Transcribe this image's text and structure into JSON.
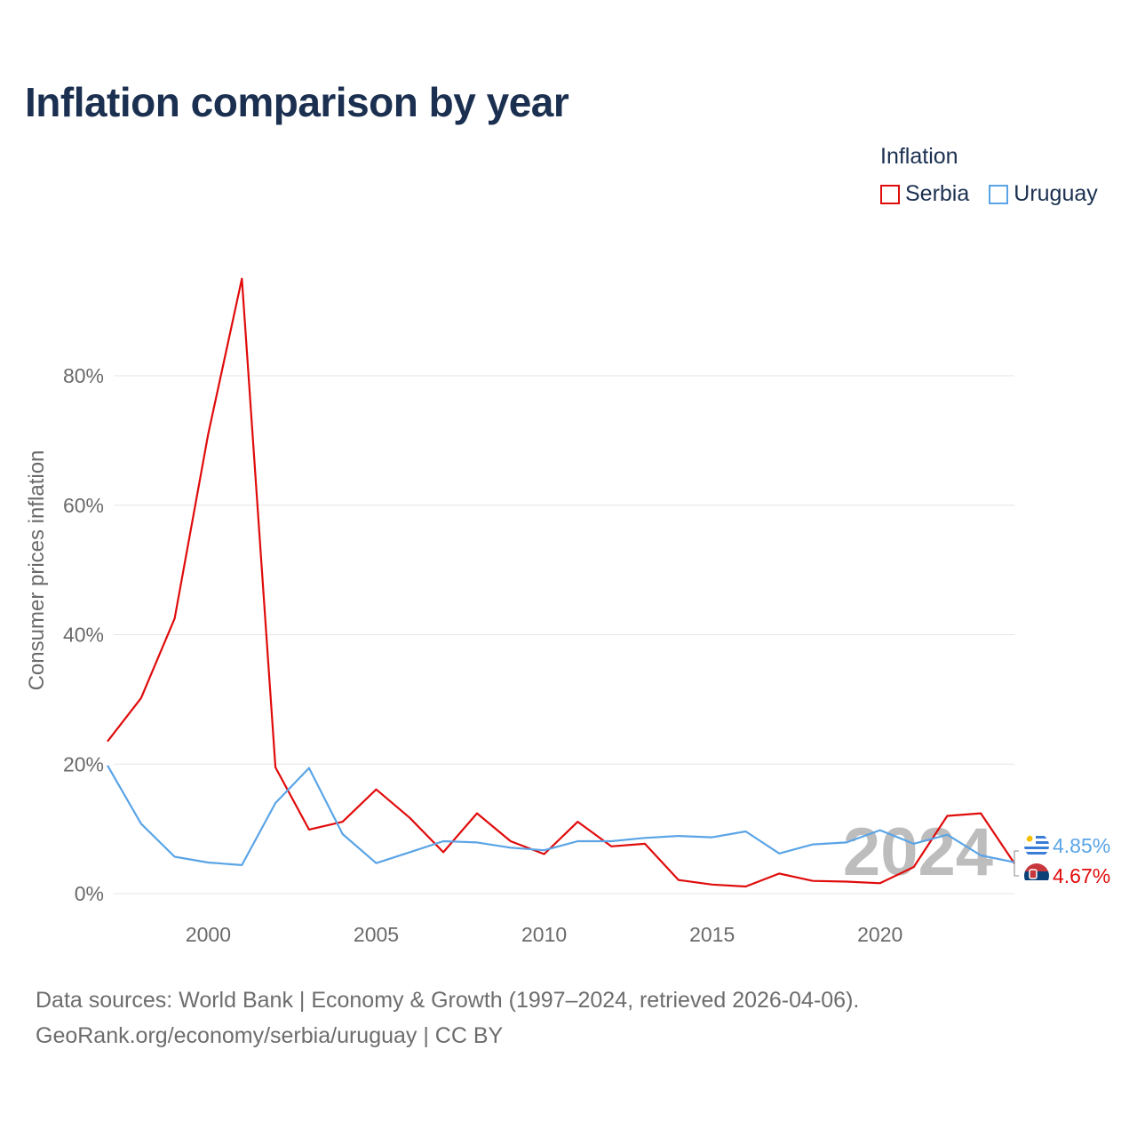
{
  "title": "Inflation comparison by year",
  "legend": {
    "title": "Inflation",
    "items": [
      {
        "name": "Serbia",
        "color": "#e00b0b"
      },
      {
        "name": "Uruguay",
        "color": "#5aa4e6"
      }
    ]
  },
  "year_watermark": "2024",
  "end_labels": {
    "uruguay": "4.85%",
    "serbia": "4.67%"
  },
  "source": {
    "line1": "Data sources: World Bank | Economy & Growth (1997–2024, retrieved 2026-04-06).",
    "line2": "GeoRank.org/economy/serbia/uruguay | CC BY"
  },
  "chart_data": {
    "type": "line",
    "title": "Inflation comparison by year",
    "xlabel": "",
    "ylabel": "Consumer prices inflation",
    "x": [
      1997,
      1998,
      1999,
      2000,
      2001,
      2002,
      2003,
      2004,
      2005,
      2006,
      2007,
      2008,
      2009,
      2010,
      2011,
      2012,
      2013,
      2014,
      2015,
      2016,
      2017,
      2018,
      2019,
      2020,
      2021,
      2022,
      2023,
      2024
    ],
    "xlim": [
      1997,
      2024
    ],
    "ylim": [
      -2,
      95
    ],
    "x_ticks": [
      2000,
      2005,
      2010,
      2015,
      2020
    ],
    "y_ticks": [
      0,
      20,
      40,
      60,
      80
    ],
    "y_tick_labels": [
      "0%",
      "20%",
      "40%",
      "60%",
      "80%"
    ],
    "grid": true,
    "legend_position": "top-right",
    "series": [
      {
        "name": "Serbia",
        "color": "#e00b0b",
        "values": [
          23.5,
          30.2,
          42.5,
          71.0,
          95.0,
          19.5,
          9.9,
          11.1,
          16.1,
          11.7,
          6.4,
          12.4,
          8.1,
          6.1,
          11.1,
          7.3,
          7.7,
          2.1,
          1.4,
          1.1,
          3.1,
          1.96,
          1.85,
          1.6,
          4.1,
          12.0,
          12.4,
          4.67
        ]
      },
      {
        "name": "Uruguay",
        "color": "#5aa4e6",
        "values": [
          19.8,
          10.8,
          5.7,
          4.8,
          4.4,
          14.0,
          19.4,
          9.2,
          4.7,
          6.4,
          8.1,
          7.9,
          7.1,
          6.7,
          8.1,
          8.1,
          8.6,
          8.9,
          8.7,
          9.6,
          6.2,
          7.6,
          7.9,
          9.8,
          7.7,
          9.1,
          5.9,
          4.85
        ]
      }
    ]
  }
}
